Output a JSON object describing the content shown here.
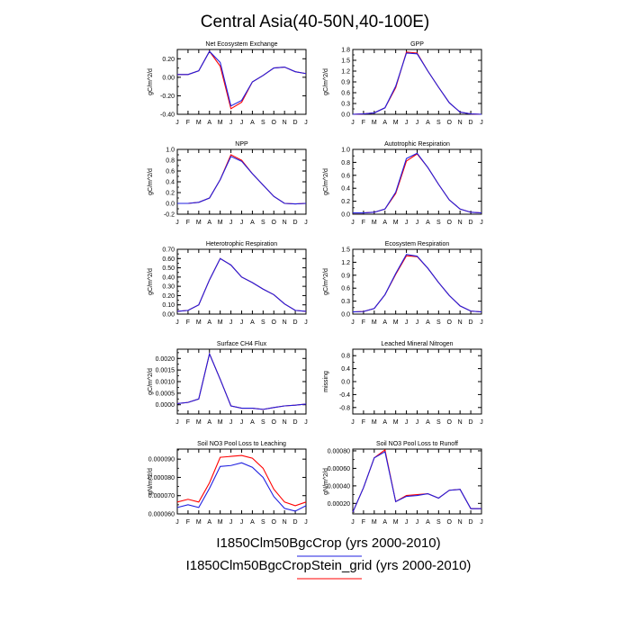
{
  "figure": {
    "title": "Central Asia(40-50N,40-100E)",
    "months": [
      "J",
      "F",
      "M",
      "A",
      "M",
      "J",
      "J",
      "A",
      "S",
      "O",
      "N",
      "D",
      "J"
    ]
  },
  "legend": [
    {
      "label": "I1850Clm50BgcCrop (yrs 2000-2010)",
      "color": "#1f1fe0"
    },
    {
      "label": "I1850Clm50BgcCropStein_grid (yrs 2000-2010)",
      "color": "#ff0000"
    }
  ],
  "colors": {
    "series_a": "#1f1fe0",
    "series_b": "#ff0000"
  },
  "chart_data": [
    {
      "type": "line",
      "title": "Net Ecosystem Exchange",
      "ylabel": "gC/m^2/d",
      "ylim": [
        -0.4,
        0.3
      ],
      "yticks": [
        "0.20",
        "0.00",
        "-0.20",
        "-0.40"
      ],
      "yticks_values": [
        0.2,
        0.0,
        -0.2,
        -0.4
      ],
      "x": [
        "J",
        "F",
        "M",
        "A",
        "M",
        "J",
        "J",
        "A",
        "S",
        "O",
        "N",
        "D",
        "J"
      ],
      "series": [
        {
          "values": [
            0.03,
            0.03,
            0.07,
            0.28,
            0.16,
            -0.31,
            -0.25,
            -0.05,
            0.02,
            0.1,
            0.11,
            0.06,
            0.04
          ]
        },
        {
          "values": [
            0.03,
            0.03,
            0.07,
            0.28,
            0.12,
            -0.34,
            -0.27,
            -0.05,
            0.02,
            0.1,
            0.11,
            0.06,
            0.04
          ]
        }
      ]
    },
    {
      "type": "line",
      "title": "GPP",
      "ylabel": "gC/m^2/d",
      "ylim": [
        0,
        1.8
      ],
      "yticks": [
        "1.8",
        "1.5",
        "1.2",
        "0.9",
        "0.6",
        "0.3",
        "0.0"
      ],
      "yticks_values": [
        1.8,
        1.5,
        1.2,
        0.9,
        0.6,
        0.3,
        0.0
      ],
      "x": [
        "J",
        "F",
        "M",
        "A",
        "M",
        "J",
        "J",
        "A",
        "S",
        "O",
        "N",
        "D",
        "J"
      ],
      "series": [
        {
          "values": [
            0.0,
            0.01,
            0.04,
            0.18,
            0.78,
            1.7,
            1.68,
            1.2,
            0.75,
            0.32,
            0.06,
            0.01,
            0.0
          ]
        },
        {
          "values": [
            0.0,
            0.01,
            0.04,
            0.18,
            0.74,
            1.73,
            1.7,
            1.2,
            0.75,
            0.32,
            0.06,
            0.01,
            0.0
          ]
        }
      ]
    },
    {
      "type": "line",
      "title": "NPP",
      "ylabel": "gC/m^2/d",
      "ylim": [
        -0.2,
        1.0
      ],
      "yticks": [
        "1.0",
        "0.8",
        "0.6",
        "0.4",
        "0.2",
        "0.0",
        "-0.2"
      ],
      "yticks_values": [
        1.0,
        0.8,
        0.6,
        0.4,
        0.2,
        0.0,
        -0.2
      ],
      "x": [
        "J",
        "F",
        "M",
        "A",
        "M",
        "J",
        "J",
        "A",
        "S",
        "O",
        "N",
        "D",
        "J"
      ],
      "series": [
        {
          "values": [
            0.0,
            0.0,
            0.02,
            0.1,
            0.44,
            0.87,
            0.78,
            0.55,
            0.34,
            0.13,
            0.0,
            -0.01,
            0.0
          ]
        },
        {
          "values": [
            0.0,
            0.0,
            0.02,
            0.1,
            0.44,
            0.9,
            0.8,
            0.55,
            0.34,
            0.13,
            0.0,
            -0.01,
            0.0
          ]
        }
      ]
    },
    {
      "type": "line",
      "title": "Autotrophic Respiration",
      "ylabel": "gC/m^2/d",
      "ylim": [
        0,
        1.0
      ],
      "yticks": [
        "1.0",
        "0.8",
        "0.6",
        "0.4",
        "0.2",
        "0.0"
      ],
      "yticks_values": [
        1.0,
        0.8,
        0.6,
        0.4,
        0.2,
        0.0
      ],
      "x": [
        "J",
        "F",
        "M",
        "A",
        "M",
        "J",
        "J",
        "A",
        "S",
        "O",
        "N",
        "D",
        "J"
      ],
      "series": [
        {
          "values": [
            0.02,
            0.02,
            0.03,
            0.08,
            0.34,
            0.86,
            0.94,
            0.72,
            0.46,
            0.22,
            0.08,
            0.03,
            0.02
          ]
        },
        {
          "values": [
            0.02,
            0.02,
            0.03,
            0.08,
            0.32,
            0.82,
            0.93,
            0.72,
            0.46,
            0.22,
            0.08,
            0.03,
            0.02
          ]
        }
      ]
    },
    {
      "type": "line",
      "title": "Heterotrophic Respiration",
      "ylabel": "gC/m^2/d",
      "ylim": [
        0,
        0.7
      ],
      "yticks": [
        "0.70",
        "0.60",
        "0.50",
        "0.40",
        "0.30",
        "0.20",
        "0.10",
        "0.00"
      ],
      "yticks_values": [
        0.7,
        0.6,
        0.5,
        0.4,
        0.3,
        0.2,
        0.1,
        0.0
      ],
      "x": [
        "J",
        "F",
        "M",
        "A",
        "M",
        "J",
        "J",
        "A",
        "S",
        "O",
        "N",
        "D",
        "J"
      ],
      "series": [
        {
          "values": [
            0.03,
            0.04,
            0.1,
            0.37,
            0.6,
            0.53,
            0.4,
            0.34,
            0.27,
            0.21,
            0.11,
            0.04,
            0.03
          ]
        },
        {
          "values": [
            0.03,
            0.04,
            0.1,
            0.37,
            0.6,
            0.53,
            0.4,
            0.34,
            0.27,
            0.21,
            0.11,
            0.04,
            0.03
          ]
        }
      ]
    },
    {
      "type": "line",
      "title": "Ecosystem Respiration",
      "ylabel": "gC/m^2/d",
      "ylim": [
        0,
        1.5
      ],
      "yticks": [
        "1.5",
        "1.2",
        "0.9",
        "0.6",
        "0.3",
        "0.0"
      ],
      "yticks_values": [
        1.5,
        1.2,
        0.9,
        0.6,
        0.3,
        0.0
      ],
      "x": [
        "J",
        "F",
        "M",
        "A",
        "M",
        "J",
        "J",
        "A",
        "S",
        "O",
        "N",
        "D",
        "J"
      ],
      "series": [
        {
          "values": [
            0.05,
            0.06,
            0.13,
            0.45,
            0.94,
            1.38,
            1.34,
            1.06,
            0.73,
            0.43,
            0.19,
            0.07,
            0.05
          ]
        },
        {
          "values": [
            0.05,
            0.06,
            0.13,
            0.45,
            0.92,
            1.35,
            1.33,
            1.06,
            0.73,
            0.43,
            0.19,
            0.07,
            0.05
          ]
        }
      ]
    },
    {
      "type": "line",
      "title": "Surface CH4 Flux",
      "ylabel": "gC/m^2/d",
      "ylim": [
        -0.0004,
        0.0024
      ],
      "yticks": [
        "0.0020",
        "0.0015",
        "0.0010",
        "0.0005",
        "0.0000"
      ],
      "yticks_values": [
        0.002,
        0.0015,
        0.001,
        0.0005,
        0.0
      ],
      "x": [
        "J",
        "F",
        "M",
        "A",
        "M",
        "J",
        "J",
        "A",
        "S",
        "O",
        "N",
        "D",
        "J"
      ],
      "series": [
        {
          "values": [
            5e-05,
            0.0001,
            0.00025,
            0.0022,
            0.0011,
            -5e-05,
            -0.00015,
            -0.00015,
            -0.0002,
            -0.00012,
            -5e-05,
            -2e-05,
            3e-05
          ]
        },
        {
          "values": [
            5e-05,
            0.0001,
            0.00025,
            0.0022,
            0.0011,
            -5e-05,
            -0.00015,
            -0.00015,
            -0.0002,
            -0.00012,
            -5e-05,
            -2e-05,
            3e-05
          ]
        }
      ]
    },
    {
      "type": "line",
      "title": "Leached Mineral Nitrogen",
      "ylabel": "missing",
      "ylim": [
        -1.0,
        1.0
      ],
      "yticks": [
        "0.8",
        "0.4",
        "0.0",
        "-0.4",
        "-0.8"
      ],
      "yticks_values": [
        0.8,
        0.4,
        0.0,
        -0.4,
        -0.8
      ],
      "x": [
        "J",
        "F",
        "M",
        "A",
        "M",
        "J",
        "J",
        "A",
        "S",
        "O",
        "N",
        "D",
        "J"
      ],
      "series": []
    },
    {
      "type": "line",
      "title": "Soil NO3 Pool Loss to Leaching",
      "ylabel": "gN/m^2/d",
      "ylim": [
        6e-05,
        9.55e-05
      ],
      "yticks": [
        "0.000090",
        "0.000080",
        "0.000070",
        "0.000060"
      ],
      "yticks_values": [
        9e-05,
        8e-05,
        7e-05,
        6e-05
      ],
      "x": [
        "J",
        "F",
        "M",
        "A",
        "M",
        "J",
        "J",
        "A",
        "S",
        "O",
        "N",
        "D",
        "J"
      ],
      "series": [
        {
          "values": [
            6.35e-05,
            6.5e-05,
            6.35e-05,
            7.4e-05,
            8.6e-05,
            8.65e-05,
            8.8e-05,
            8.55e-05,
            8e-05,
            6.95e-05,
            6.3e-05,
            6.15e-05,
            6.45e-05
          ]
        },
        {
          "values": [
            6.65e-05,
            6.8e-05,
            6.65e-05,
            7.7e-05,
            9.1e-05,
            9.15e-05,
            9.2e-05,
            9.05e-05,
            8.5e-05,
            7.35e-05,
            6.65e-05,
            6.45e-05,
            6.65e-05
          ]
        }
      ]
    },
    {
      "type": "line",
      "title": "Soil NO3 Pool Loss to Runoff",
      "ylabel": "gN/m^2/d",
      "ylim": [
        8e-05,
        0.00082
      ],
      "yticks": [
        "0.00080",
        "0.00060",
        "0.00040",
        "0.00020"
      ],
      "yticks_values": [
        0.0008,
        0.0006,
        0.0004,
        0.0002
      ],
      "x": [
        "J",
        "F",
        "M",
        "A",
        "M",
        "J",
        "J",
        "A",
        "S",
        "O",
        "N",
        "D",
        "J"
      ],
      "series": [
        {
          "values": [
            0.0001,
            0.00038,
            0.00072,
            0.00079,
            0.00022,
            0.00028,
            0.00029,
            0.00031,
            0.00026,
            0.00035,
            0.00036,
            0.00014,
            0.00014
          ]
        },
        {
          "values": [
            0.0001,
            0.00038,
            0.00072,
            0.00081,
            0.00022,
            0.00029,
            0.0003,
            0.00031,
            0.00026,
            0.00035,
            0.00036,
            0.00014,
            0.00014
          ]
        }
      ]
    }
  ]
}
